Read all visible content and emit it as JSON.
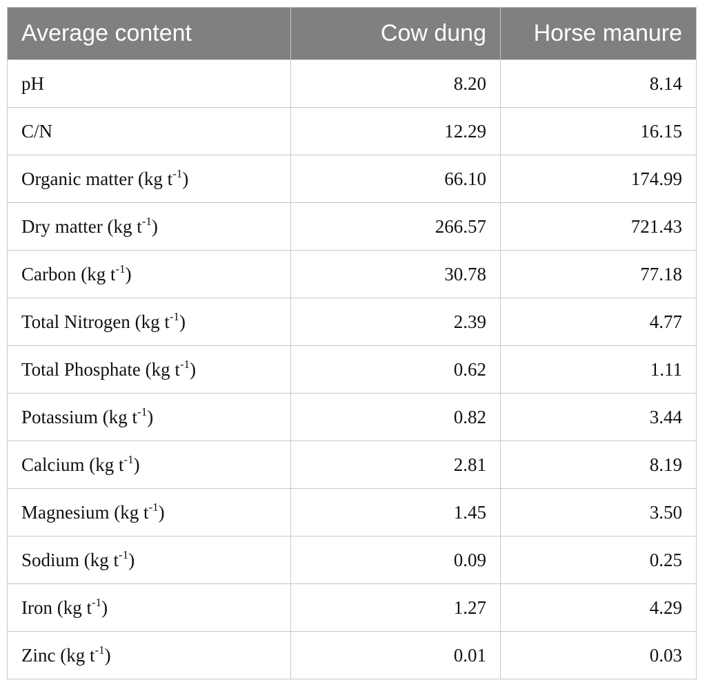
{
  "headers": {
    "label": "Average content",
    "cow": "Cow dung",
    "horse": "Horse manure"
  },
  "rows": [
    {
      "name": "pH",
      "unit_base": "",
      "unit_exp": "",
      "unit_close": "",
      "cow": "8.20",
      "horse": "8.14"
    },
    {
      "name": "C/N",
      "unit_base": "",
      "unit_exp": "",
      "unit_close": "",
      "cow": "12.29",
      "horse": "16.15"
    },
    {
      "name": "Organic matter",
      "unit_base": "(kg t",
      "unit_exp": "-1",
      "unit_close": ")",
      "cow": "66.10",
      "horse": "174.99"
    },
    {
      "name": "Dry matter",
      "unit_base": "(kg t",
      "unit_exp": "-1",
      "unit_close": ")",
      "cow": "266.57",
      "horse": "721.43"
    },
    {
      "name": "Carbon",
      "unit_base": "(kg t",
      "unit_exp": "-1",
      "unit_close": ")",
      "cow": "30.78",
      "horse": "77.18"
    },
    {
      "name": "Total Nitrogen",
      "unit_base": "(kg t",
      "unit_exp": "-1",
      "unit_close": ")",
      "cow": "2.39",
      "horse": "4.77"
    },
    {
      "name": "Total Phosphate",
      "unit_base": "(kg t",
      "unit_exp": "-1",
      "unit_close": ")",
      "cow": "0.62",
      "horse": "1.11"
    },
    {
      "name": "Potassium",
      "unit_base": "(kg t",
      "unit_exp": "-1",
      "unit_close": ")",
      "cow": "0.82",
      "horse": "3.44"
    },
    {
      "name": "Calcium",
      "unit_base": "(kg t",
      "unit_exp": "-1",
      "unit_close": ")",
      "cow": "2.81",
      "horse": "8.19"
    },
    {
      "name": "Magnesium",
      "unit_base": "(kg t",
      "unit_exp": "-1",
      "unit_close": ")",
      "cow": "1.45",
      "horse": "3.50"
    },
    {
      "name": "Sodium",
      "unit_base": "(kg t",
      "unit_exp": "-1",
      "unit_close": ")",
      "cow": "0.09",
      "horse": "0.25"
    },
    {
      "name": "Iron",
      "unit_base": "(kg t",
      "unit_exp": "-1",
      "unit_close": ")",
      "cow": "1.27",
      "horse": "4.29"
    },
    {
      "name": "Zinc",
      "unit_base": "(kg t",
      "unit_exp": "-1",
      "unit_close": ")",
      "cow": "0.01",
      "horse": "0.03"
    }
  ],
  "colors": {
    "header_bg": "#808080",
    "header_text": "#ffffff",
    "grid": "#c7c7c7",
    "body_text": "#111111"
  }
}
